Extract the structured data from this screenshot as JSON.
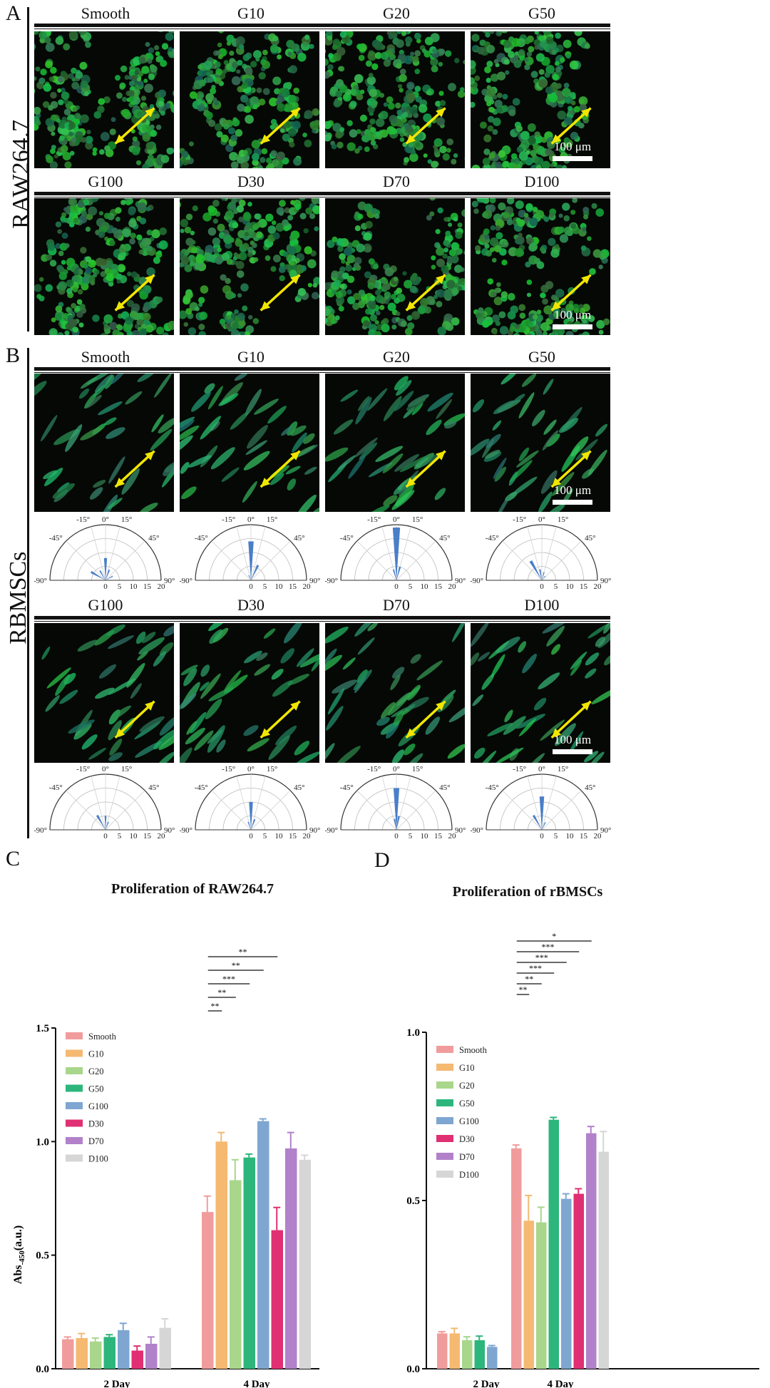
{
  "panels": {
    "a": {
      "letter": "A",
      "side_label": "RAW264.7"
    },
    "b": {
      "letter": "B",
      "side_label": "RBMSCs"
    },
    "c": {
      "letter": "C"
    },
    "d": {
      "letter": "D"
    }
  },
  "groups_row1": [
    "Smooth",
    "G10",
    "G20",
    "G50"
  ],
  "groups_row2": [
    "G100",
    "D30",
    "D70",
    "D100"
  ],
  "scale_bar_label": "100 μm",
  "polar": {
    "angle_labels": [
      "-90°",
      "-45°",
      "-15°",
      "0°",
      "15°",
      "45°",
      "90°"
    ],
    "radial_labels": [
      "0",
      "5",
      "10",
      "15",
      "20"
    ]
  },
  "chart_data": [
    {
      "type": "bar",
      "title": "Proliferation of RAW264.7",
      "ylabel": "Abs-450(a.u.)",
      "ylabel_main": "Abs",
      "ylabel_sub": "-450",
      "ylabel_unit": "(a.u.)",
      "categories": [
        "2 Day",
        "4 Day"
      ],
      "ylim": [
        0,
        1.5
      ],
      "yticks": [
        "0.0",
        "0.5",
        "1.0",
        "1.5"
      ],
      "legend_position": "top-left",
      "series": [
        {
          "name": "Smooth",
          "color": "#f19c9c",
          "values": [
            0.13,
            0.69
          ],
          "errors": [
            0.01,
            0.07
          ]
        },
        {
          "name": "G10",
          "color": "#f5b971",
          "values": [
            0.135,
            1.0
          ],
          "errors": [
            0.02,
            0.04
          ]
        },
        {
          "name": "G20",
          "color": "#a8d68b",
          "values": [
            0.12,
            0.83
          ],
          "errors": [
            0.015,
            0.09
          ]
        },
        {
          "name": "G50",
          "color": "#2db67c",
          "values": [
            0.14,
            0.93
          ],
          "errors": [
            0.01,
            0.015
          ]
        },
        {
          "name": "G100",
          "color": "#7ea6d1",
          "values": [
            0.17,
            1.09
          ],
          "errors": [
            0.03,
            0.01
          ]
        },
        {
          "name": "D30",
          "color": "#e02f73",
          "values": [
            0.08,
            0.61
          ],
          "errors": [
            0.02,
            0.1
          ]
        },
        {
          "name": "D70",
          "color": "#b181c9",
          "values": [
            0.11,
            0.97
          ],
          "errors": [
            0.03,
            0.07
          ]
        },
        {
          "name": "D100",
          "color": "#d6d6d6",
          "values": [
            0.18,
            0.92
          ],
          "errors": [
            0.04,
            0.02
          ]
        }
      ],
      "significance": [
        "**",
        "**",
        "***",
        "**",
        "**"
      ]
    },
    {
      "type": "bar",
      "title": "Proliferation of rBMSCs",
      "categories": [
        "2 Day",
        "4 Day"
      ],
      "ylim": [
        0,
        1.0
      ],
      "yticks": [
        "0.0",
        "0.5",
        "1.0"
      ],
      "legend_position": "top-left",
      "series": [
        {
          "name": "Smooth",
          "color": "#f19c9c",
          "values": [
            0.105,
            0.655
          ],
          "errors": [
            0.005,
            0.01
          ]
        },
        {
          "name": "G10",
          "color": "#f5b971",
          "values": [
            0.105,
            0.44
          ],
          "errors": [
            0.015,
            0.075
          ]
        },
        {
          "name": "G20",
          "color": "#a8d68b",
          "values": [
            0.085,
            0.435
          ],
          "errors": [
            0.01,
            0.045
          ]
        },
        {
          "name": "G50",
          "color": "#2db67c",
          "values": [
            0.085,
            0.74
          ],
          "errors": [
            0.012,
            0.007
          ]
        },
        {
          "name": "G100",
          "color": "#7ea6d1",
          "values": [
            0.065,
            0.505
          ],
          "errors": [
            0.004,
            0.015
          ]
        },
        {
          "name": "D30",
          "color": "#e02f73",
          "values": [
            0.0,
            0.52
          ],
          "errors": [
            0.0,
            0.015
          ]
        },
        {
          "name": "D70",
          "color": "#b181c9",
          "values": [
            0.0,
            0.7
          ],
          "errors": [
            0.0,
            0.02
          ]
        },
        {
          "name": "D100",
          "color": "#d6d6d6",
          "values": [
            0.0,
            0.645
          ],
          "errors": [
            0.0,
            0.06
          ]
        }
      ],
      "significance": [
        "**",
        "**",
        "***",
        "***",
        "***",
        "*"
      ]
    }
  ]
}
